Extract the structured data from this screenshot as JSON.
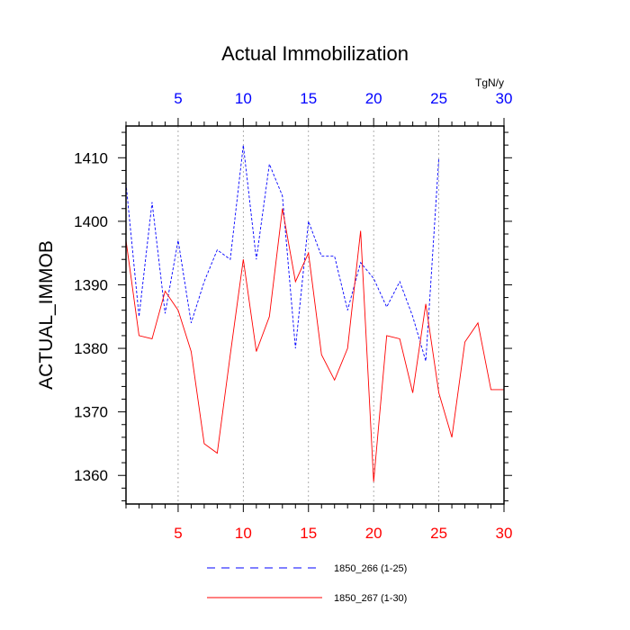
{
  "chart_data": {
    "type": "line",
    "title": "Actual Immobilization",
    "ylabel": "ACTUAL_IMMOB",
    "units_label": "TgN/y",
    "xlim": [
      1,
      30
    ],
    "ylim": [
      1355.5,
      1415
    ],
    "y_ticks": [
      1360,
      1370,
      1380,
      1390,
      1400,
      1410
    ],
    "x_ticks_bottom": [
      5,
      10,
      15,
      20,
      25,
      30
    ],
    "x_ticks_top": [
      5,
      10,
      15,
      20,
      25,
      30
    ],
    "grid_x": [
      5,
      10,
      15,
      20,
      25
    ],
    "colors": {
      "series_266": "#0000ff",
      "series_267": "#ff0000",
      "grid": "#999999",
      "axis": "#000000"
    },
    "series": [
      {
        "name": "1850_266 (1-25)",
        "style": "dashed",
        "x": [
          1,
          2,
          3,
          4,
          5,
          6,
          7,
          8,
          9,
          10,
          11,
          12,
          13,
          14,
          15,
          16,
          17,
          18,
          19,
          20,
          21,
          22,
          23,
          24,
          25
        ],
        "values": [
          1406,
          1385,
          1403,
          1385.5,
          1397,
          1384,
          1390.5,
          1395.5,
          1394,
          1412,
          1394,
          1409,
          1404,
          1380,
          1400,
          1394.5,
          1394.5,
          1386,
          1393.5,
          1391,
          1386.5,
          1390.5,
          1385,
          1378,
          1410
        ]
      },
      {
        "name": "1850_267 (1-30)",
        "style": "solid",
        "x": [
          1,
          2,
          3,
          4,
          5,
          6,
          7,
          8,
          9,
          10,
          11,
          12,
          13,
          14,
          15,
          16,
          17,
          18,
          19,
          20,
          21,
          22,
          23,
          24,
          25,
          26,
          27,
          28,
          29,
          30
        ],
        "values": [
          1397,
          1382,
          1381.5,
          1389,
          1386,
          1379.5,
          1365,
          1363.5,
          1379,
          1394,
          1379.5,
          1385,
          1402,
          1390.5,
          1395,
          1379,
          1375,
          1380,
          1398.5,
          1359,
          1382,
          1381.5,
          1373,
          1387,
          1373,
          1366,
          1381,
          1384,
          1373.5,
          1373.5
        ]
      }
    ]
  }
}
